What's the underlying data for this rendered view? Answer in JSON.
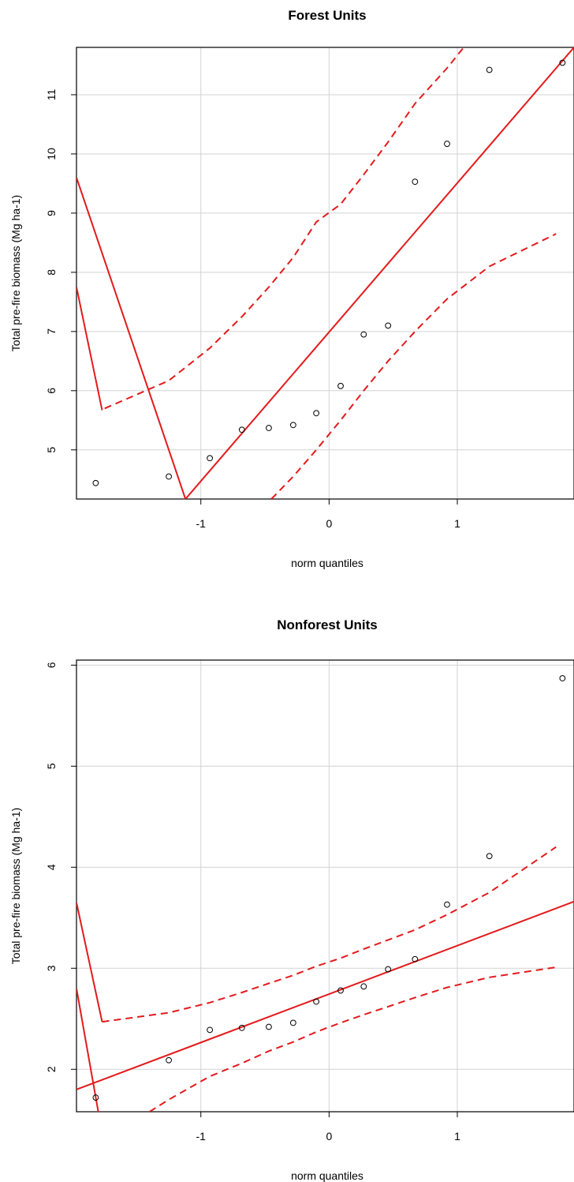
{
  "colors": {
    "line": "#e31a1c",
    "points": "#000000",
    "grid": "#d3d3d3",
    "axis": "#000000"
  },
  "chart_data": [
    {
      "type": "scatter",
      "title": "Forest Units",
      "xlabel": "norm quantiles",
      "ylabel": "Total pre-fire biomass (Mg ha-1)",
      "xlim": [
        -1.97,
        1.91
      ],
      "ylim": [
        4.17,
        11.8
      ],
      "xticks": [
        -1,
        0,
        1
      ],
      "yticks": [
        5,
        6,
        7,
        8,
        9,
        10,
        11
      ],
      "grid": true,
      "points": {
        "x": [
          -1.82,
          -1.25,
          -0.93,
          -0.68,
          -0.47,
          -0.28,
          -0.1,
          0.09,
          0.27,
          0.46,
          0.67,
          0.92,
          1.25,
          1.82
        ],
        "y": [
          4.44,
          4.55,
          4.86,
          5.34,
          5.37,
          5.42,
          5.62,
          6.08,
          6.95,
          7.1,
          9.53,
          10.17,
          11.42,
          11.54
        ]
      },
      "fit_line": {
        "x": [
          -1.12,
          1.91
        ],
        "y": [
          4.17,
          11.8
        ]
      },
      "confidence_upper": {
        "x": [
          -1.75,
          -1.25,
          -0.93,
          -0.68,
          -0.47,
          -0.28,
          -0.1,
          0.09,
          0.27,
          0.46,
          0.67,
          0.92,
          1.05
        ],
        "y": [
          5.7,
          6.17,
          6.72,
          7.25,
          7.75,
          8.25,
          8.85,
          9.15,
          9.65,
          10.2,
          10.85,
          11.45,
          11.8
        ]
      },
      "confidence_lower": {
        "x": [
          -0.45,
          -0.28,
          -0.1,
          0.09,
          0.27,
          0.46,
          0.67,
          0.92,
          1.25,
          1.77
        ],
        "y": [
          4.17,
          4.55,
          5.0,
          5.5,
          6.0,
          6.5,
          7.0,
          7.55,
          8.1,
          8.65
        ]
      },
      "extra_lines": [
        {
          "x": [
            -1.97,
            -1.12
          ],
          "y": [
            9.6,
            4.17
          ]
        },
        {
          "x": [
            -1.97,
            -1.77
          ],
          "y": [
            7.75,
            5.67
          ]
        }
      ]
    },
    {
      "type": "scatter",
      "title": "Nonforest Units",
      "xlabel": "norm quantiles",
      "ylabel": "Total pre-fire biomass (Mg ha-1)",
      "xlim": [
        -1.97,
        1.91
      ],
      "ylim": [
        1.58,
        6.05
      ],
      "xticks": [
        -1,
        0,
        1
      ],
      "yticks": [
        2,
        3,
        4,
        5,
        6
      ],
      "grid": true,
      "points": {
        "x": [
          -1.82,
          -1.25,
          -0.93,
          -0.68,
          -0.47,
          -0.28,
          -0.1,
          0.09,
          0.27,
          0.46,
          0.67,
          0.92,
          1.25,
          1.82
        ],
        "y": [
          1.72,
          2.09,
          2.39,
          2.41,
          2.42,
          2.46,
          2.67,
          2.78,
          2.82,
          2.99,
          3.09,
          3.63,
          4.11,
          5.87
        ]
      },
      "fit_line": {
        "x": [
          -1.97,
          1.91
        ],
        "y": [
          1.8,
          3.66
        ]
      },
      "confidence_upper": {
        "x": [
          -1.77,
          -1.25,
          -0.93,
          -0.68,
          -0.47,
          -0.28,
          -0.1,
          0.09,
          0.27,
          0.46,
          0.67,
          0.92,
          1.25,
          1.77
        ],
        "y": [
          2.47,
          2.56,
          2.66,
          2.76,
          2.85,
          2.93,
          3.02,
          3.1,
          3.19,
          3.28,
          3.38,
          3.53,
          3.75,
          4.2
        ]
      },
      "confidence_lower": {
        "x": [
          -1.4,
          -1.25,
          -0.93,
          -0.68,
          -0.47,
          -0.28,
          -0.1,
          0.09,
          0.27,
          0.46,
          0.67,
          0.92,
          1.25,
          1.77
        ],
        "y": [
          1.58,
          1.7,
          1.93,
          2.06,
          2.18,
          2.27,
          2.37,
          2.46,
          2.54,
          2.62,
          2.71,
          2.81,
          2.91,
          3.01
        ]
      },
      "extra_lines": [
        {
          "x": [
            -1.97,
            -1.77
          ],
          "y": [
            3.65,
            2.47
          ]
        },
        {
          "x": [
            -1.97,
            -1.8
          ],
          "y": [
            2.8,
            1.58
          ]
        }
      ]
    }
  ]
}
